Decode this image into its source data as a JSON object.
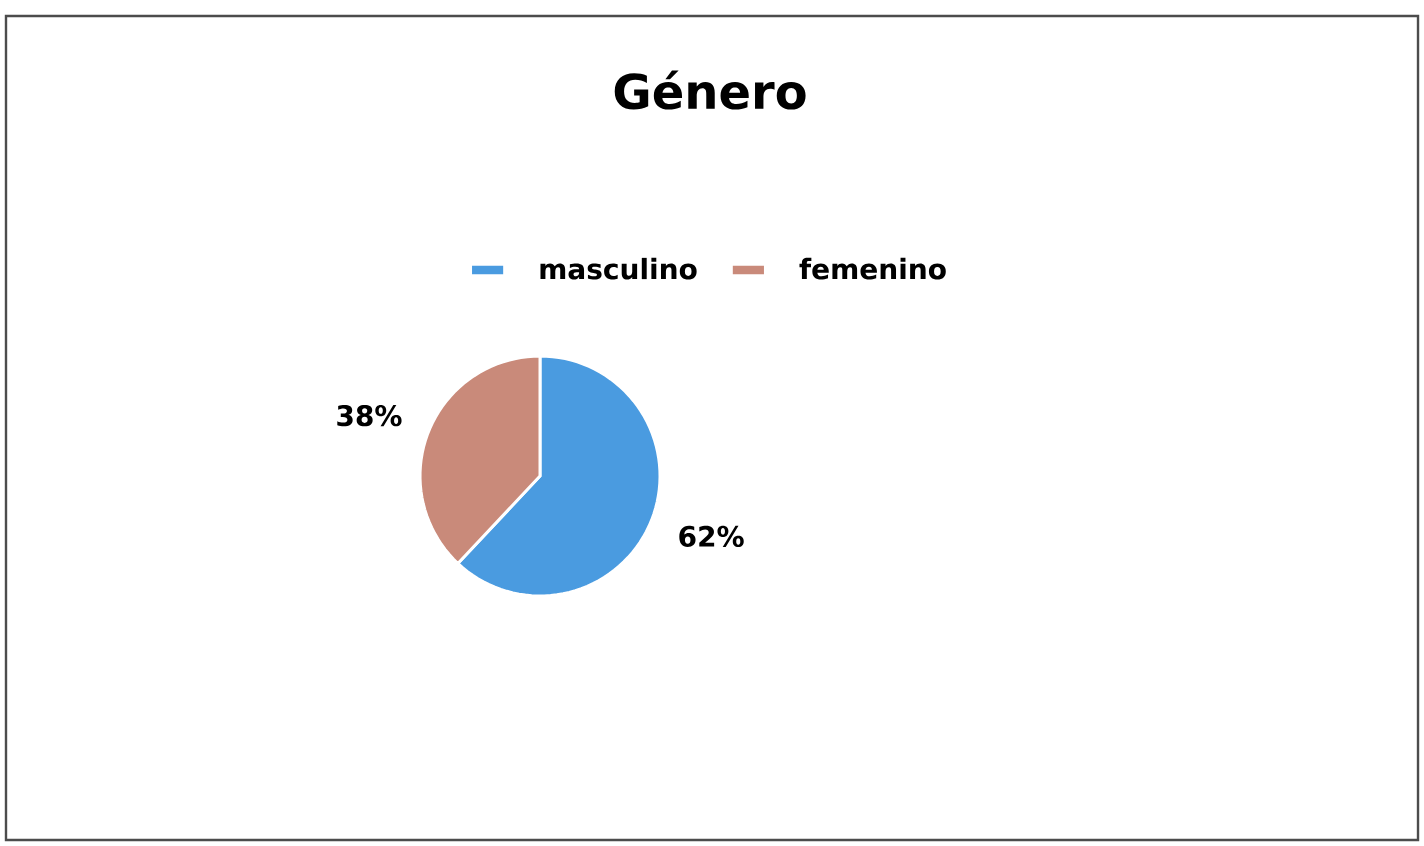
{
  "chart_data": {
    "type": "pie",
    "title": "Género",
    "categories": [
      "masculino",
      "femenino"
    ],
    "values": [
      62,
      38
    ],
    "value_labels": [
      "62%",
      "38%"
    ],
    "colors": [
      "#4a9be0",
      "#c98a7a"
    ],
    "legend": "top"
  }
}
